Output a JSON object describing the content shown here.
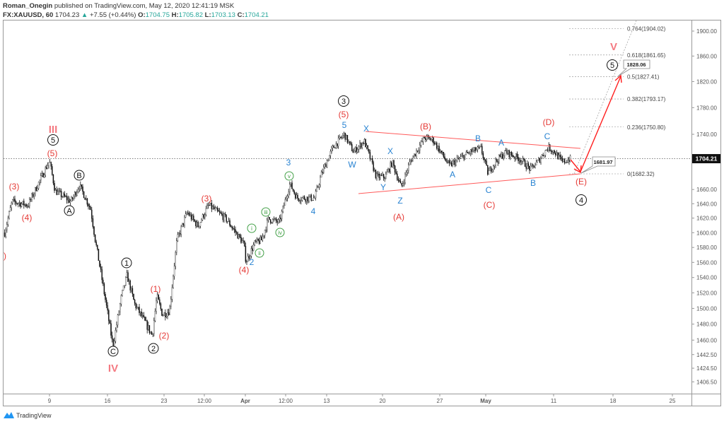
{
  "header": {
    "author": "Roman_Onegin",
    "published": "published on TradingView.com, May 12, 2020 12:41:19 MSK",
    "symbol": "FX:XAUUSD, 60",
    "last": "1704.23",
    "change": "+7.55 (+0.44%)",
    "o_label": "O:",
    "o": "1704.75",
    "h_label": "H:",
    "h": "1705.82",
    "l_label": "L:",
    "l": "1703.13",
    "c_label": "C:",
    "c": "1704.21"
  },
  "footer": {
    "logo_text": "TradingView"
  },
  "colors": {
    "wave_red": "#e53935",
    "wave_blue": "#2a84d2",
    "wave_green": "#43a047",
    "wave_pink": "#f47a82",
    "trendline": "#ff5252",
    "candle": "#111111"
  },
  "chart_data": {
    "type": "candlestick",
    "symbol": "XAUUSD",
    "interval": "60",
    "y_scale": "log",
    "ylim": [
      1400,
      1915
    ],
    "grid": false,
    "current_price": 1704.21,
    "y_ticks": [
      "1900.00",
      "1860.00",
      "1820.00",
      "1780.00",
      "1740.00",
      "1660.00",
      "1640.00",
      "1620.00",
      "1600.00",
      "1580.00",
      "1560.00",
      "1540.00",
      "1520.00",
      "1500.00",
      "1480.00",
      "1460.00",
      "1442.50",
      "1424.50",
      "1406.50"
    ],
    "x_ticks": [
      "9",
      "16",
      "23",
      "12:00",
      "Apr",
      "12:00",
      "13",
      "20",
      "27",
      "May",
      "11",
      "18",
      "25"
    ],
    "price_path": [
      [
        "2020-03-03 00:00",
        1600
      ],
      [
        "2020-03-03 16:00",
        1643
      ],
      [
        "2020-03-05 02:00",
        1638
      ],
      [
        "2020-03-09 00:00",
        1701
      ],
      [
        "2020-03-09 12:00",
        1658
      ],
      [
        "2020-03-10 22:00",
        1643
      ],
      [
        "2020-03-11 16:00",
        1666
      ],
      [
        "2020-03-12 16:00",
        1633
      ],
      [
        "2020-03-13 02:00",
        1590
      ],
      [
        "2020-03-16 01:00",
        1506
      ],
      [
        "2020-03-16 16:00",
        1452
      ],
      [
        "2020-03-17 10:00",
        1515
      ],
      [
        "2020-03-17 22:00",
        1543
      ],
      [
        "2020-03-18 14:00",
        1506
      ],
      [
        "2020-03-20 04:00",
        1466
      ],
      [
        "2020-03-20 14:00",
        1515
      ],
      [
        "2020-03-23 02:00",
        1492
      ],
      [
        "2020-03-23 17:00",
        1497
      ],
      [
        "2020-03-24 09:00",
        1590
      ],
      [
        "2020-03-25 07:00",
        1628
      ],
      [
        "2020-03-26 06:00",
        1609
      ],
      [
        "2020-03-27 05:00",
        1638
      ],
      [
        "2020-03-30 18:00",
        1619
      ],
      [
        "2020-04-01 08:00",
        1585
      ],
      [
        "2020-04-01 13:00",
        1561
      ],
      [
        "2020-04-02 07:00",
        1585
      ],
      [
        "2020-04-02 22:00",
        1590
      ],
      [
        "2020-04-03 13:00",
        1619
      ],
      [
        "2020-04-06 12:00",
        1614
      ],
      [
        "2020-04-07 11:00",
        1668
      ],
      [
        "2020-04-08 02:00",
        1648
      ],
      [
        "2020-04-09 16:00",
        1648
      ],
      [
        "2020-04-10 07:00",
        1683
      ],
      [
        "2020-04-13 06:00",
        1719
      ],
      [
        "2020-04-14 07:00",
        1740
      ],
      [
        "2020-04-15 03:00",
        1714
      ],
      [
        "2020-04-16 02:00",
        1730
      ],
      [
        "2020-04-17 04:00",
        1678
      ],
      [
        "2020-04-17 23:00",
        1678
      ],
      [
        "2020-04-20 14:00",
        1699
      ],
      [
        "2020-04-21 09:00",
        1663
      ],
      [
        "2020-04-22 04:00",
        1699
      ],
      [
        "2020-04-23 11:00",
        1735
      ],
      [
        "2020-04-24 05:00",
        1732
      ],
      [
        "2020-04-27 16:00",
        1694
      ],
      [
        "2020-04-28 14:00",
        1704
      ],
      [
        "2020-04-29 13:00",
        1714
      ],
      [
        "2020-04-30 12:00",
        1719
      ],
      [
        "2020-05-01 03:00",
        1683
      ],
      [
        "2020-05-01 18:00",
        1699
      ],
      [
        "2020-05-04 17:00",
        1714
      ],
      [
        "2020-05-05 23:00",
        1704
      ],
      [
        "2020-05-06 22:00",
        1689
      ],
      [
        "2020-05-07 13:00",
        1699
      ],
      [
        "2020-05-08 12:00",
        1721
      ],
      [
        "2020-05-11 02:00",
        1714
      ],
      [
        "2020-05-11 18:00",
        1699
      ],
      [
        "2020-05-12 13:00",
        1704.21
      ]
    ],
    "fib_levels": [
      {
        "label": "0.764(1904.02)",
        "price": 1904.02
      },
      {
        "label": "0.618(1861.65)",
        "price": 1861.65
      },
      {
        "label": "0.5(1827.41)",
        "price": 1827.41
      },
      {
        "label": "0.382(1793.17)",
        "price": 1793.17
      },
      {
        "label": "0.236(1750.80)",
        "price": 1750.8
      },
      {
        "label": "0(1682.32)",
        "price": 1682.32
      }
    ],
    "callouts": [
      "1681.97",
      "1828.06"
    ],
    "price_label": "1704.21"
  },
  "waves": {
    "w0": ")",
    "w1": "(3)",
    "w2": "(4)",
    "w3": "(5)",
    "w4": "III",
    "w5": "5",
    "w6": "B",
    "w7": "A",
    "w8": "C",
    "w9": "1",
    "w10": "2",
    "w11": "IV",
    "w12": "(1)",
    "w13": "(2)",
    "w14": "(3)",
    "w15": "(4)",
    "w16": "2",
    "w17": "i",
    "w18": "ii",
    "w19": "iii",
    "w20": "iv",
    "w21": "v",
    "w22": "3",
    "w23": "4",
    "w24": "3",
    "w25": "(5)",
    "w26": "5",
    "w27": "X",
    "w28": "W",
    "w29": "X",
    "w30": "Y",
    "w31": "Z",
    "w32": "(A)",
    "w33": "(B)",
    "w34": "B",
    "w35": "A",
    "w36": "A",
    "w37": "C",
    "w38": "(C)",
    "w39": "(D)",
    "w40": "C",
    "w41": "B",
    "w42": "(E)",
    "w43": "4",
    "w44": "V",
    "w45": "5"
  }
}
